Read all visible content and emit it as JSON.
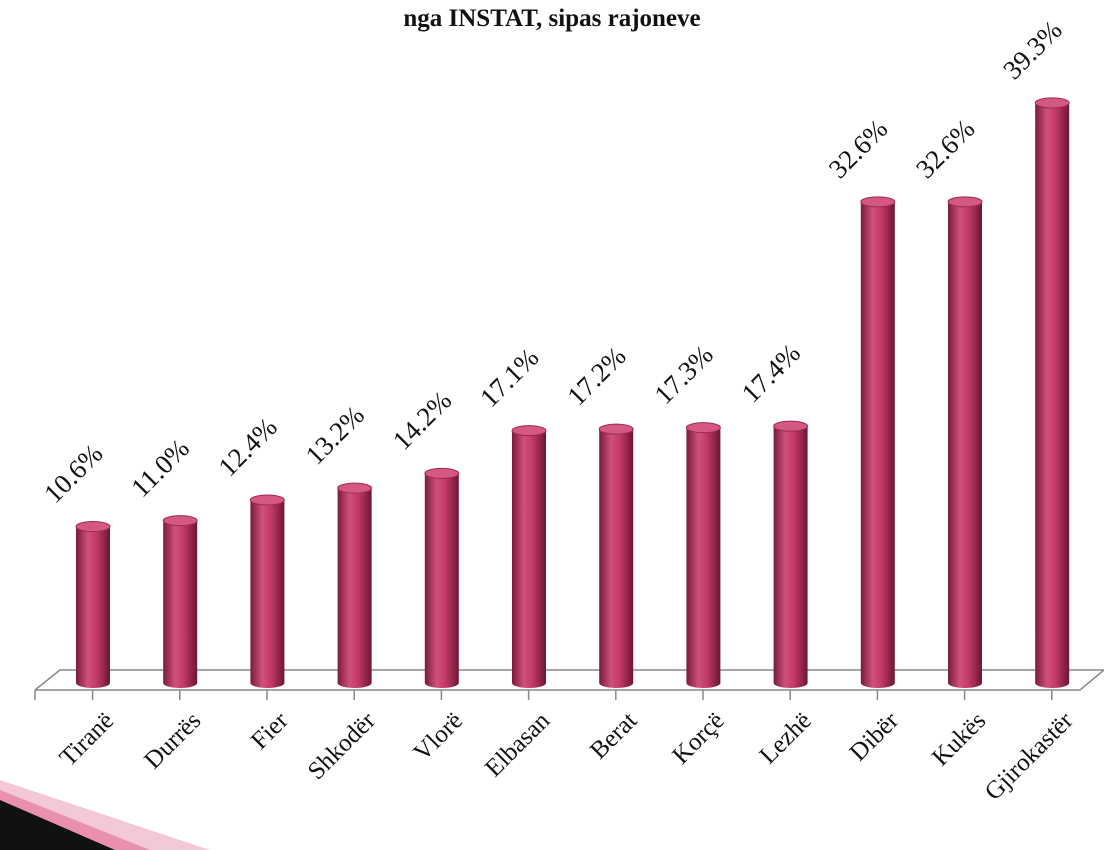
{
  "chart_data": {
    "type": "bar",
    "title": "nga INSTAT, sipas rajoneve",
    "categories": [
      "Tiranë",
      "Durrës",
      "Fier",
      "Shkodër",
      "Vlorë",
      "Elbasan",
      "Berat",
      "Korçë",
      "Lezhë",
      "Dibër",
      "Kukës",
      "Gjirokastër"
    ],
    "values": [
      10.6,
      11.0,
      12.4,
      13.2,
      14.2,
      17.1,
      17.2,
      17.3,
      17.4,
      32.6,
      32.6,
      39.3
    ],
    "value_labels": [
      "10.6%",
      "11.0%",
      "12.4%",
      "13.2%",
      "14.2%",
      "17.1%",
      "17.2%",
      "17.3%",
      "17.4%",
      "32.6%",
      "32.6%",
      "39.3%"
    ],
    "color": "#c23a68"
  }
}
